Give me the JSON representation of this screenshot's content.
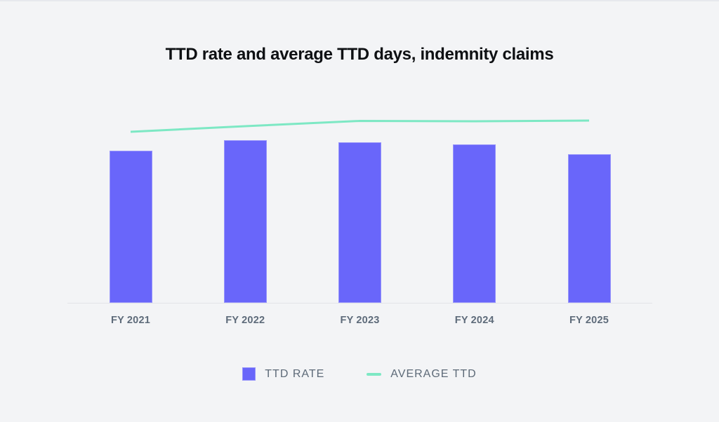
{
  "title": "TTD rate and average TTD days, indemnity claims",
  "colors": {
    "background": "#F3F4F6",
    "bar": "#6966FA",
    "line": "#7DE8C4",
    "axis": "#E2E4E8",
    "axis_label": "#5E6B7A",
    "legend_text": "#5D6A78",
    "title_text": "#0E1013"
  },
  "legend": {
    "items": [
      {
        "label": "TTD RATE",
        "swatch": "square",
        "color": "#6966FA"
      },
      {
        "label": "AVERAGE TTD",
        "swatch": "line",
        "color": "#7DE8C4"
      }
    ]
  },
  "chart_data": {
    "type": "bar",
    "title": "TTD rate and average TTD days, indemnity claims",
    "xlabel": "",
    "ylabel": "",
    "categories": [
      "FY 2021",
      "FY 2022",
      "FY 2023",
      "FY 2024",
      "FY 2025"
    ],
    "series": [
      {
        "name": "TTD RATE",
        "type": "bar",
        "values": [
          21.7,
          23.2,
          22.9,
          22.6,
          21.2
        ]
      },
      {
        "name": "AVERAGE TTD",
        "type": "line",
        "values": [
          24.4,
          25.2,
          25.95,
          25.9,
          26.0
        ]
      }
    ],
    "ylim": [
      0,
      43
    ],
    "values_estimated_from_pixels": true,
    "y_axis_visible": false,
    "grid": false,
    "legend_position": "bottom"
  }
}
